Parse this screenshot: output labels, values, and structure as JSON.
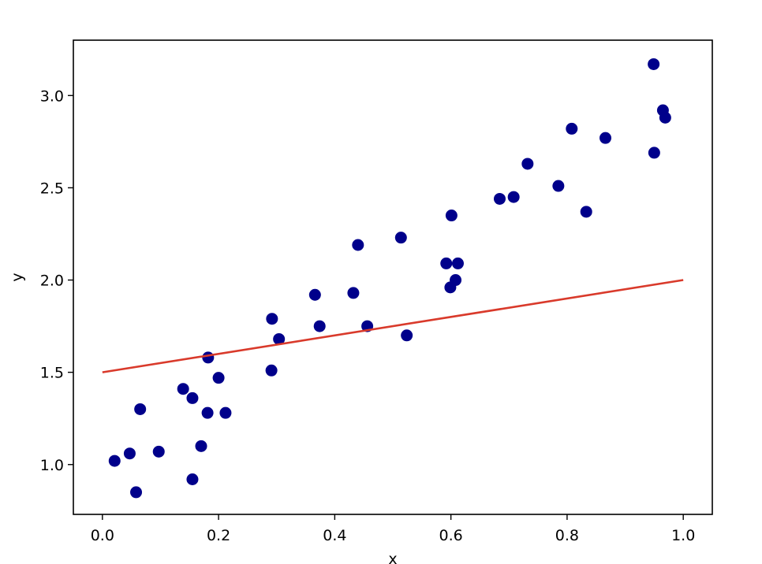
{
  "chart_data": {
    "type": "scatter",
    "xlabel": "x",
    "ylabel": "y",
    "xlim": [
      -0.05,
      1.05
    ],
    "ylim": [
      0.73,
      3.3
    ],
    "grid": false,
    "x_ticks": [
      {
        "value": 0.0,
        "label": "0.0"
      },
      {
        "value": 0.2,
        "label": "0.2"
      },
      {
        "value": 0.4,
        "label": "0.4"
      },
      {
        "value": 0.6,
        "label": "0.6"
      },
      {
        "value": 0.8,
        "label": "0.8"
      },
      {
        "value": 1.0,
        "label": "1.0"
      }
    ],
    "y_ticks": [
      {
        "value": 1.0,
        "label": "1.0"
      },
      {
        "value": 1.5,
        "label": "1.5"
      },
      {
        "value": 2.0,
        "label": "2.0"
      },
      {
        "value": 2.5,
        "label": "2.5"
      },
      {
        "value": 3.0,
        "label": "3.0"
      }
    ],
    "series": [
      {
        "kind": "points",
        "color": "#00008b",
        "points": [
          {
            "x": 0.021,
            "y": 1.02
          },
          {
            "x": 0.047,
            "y": 1.06
          },
          {
            "x": 0.058,
            "y": 0.85
          },
          {
            "x": 0.065,
            "y": 1.3
          },
          {
            "x": 0.097,
            "y": 1.07
          },
          {
            "x": 0.139,
            "y": 1.41
          },
          {
            "x": 0.155,
            "y": 1.36
          },
          {
            "x": 0.155,
            "y": 0.92
          },
          {
            "x": 0.17,
            "y": 1.1
          },
          {
            "x": 0.181,
            "y": 1.28
          },
          {
            "x": 0.182,
            "y": 1.58
          },
          {
            "x": 0.2,
            "y": 1.47
          },
          {
            "x": 0.212,
            "y": 1.28
          },
          {
            "x": 0.291,
            "y": 1.51
          },
          {
            "x": 0.292,
            "y": 1.79
          },
          {
            "x": 0.304,
            "y": 1.68
          },
          {
            "x": 0.366,
            "y": 1.92
          },
          {
            "x": 0.374,
            "y": 1.75
          },
          {
            "x": 0.432,
            "y": 1.93
          },
          {
            "x": 0.44,
            "y": 2.19
          },
          {
            "x": 0.456,
            "y": 1.75
          },
          {
            "x": 0.514,
            "y": 2.23
          },
          {
            "x": 0.524,
            "y": 1.7
          },
          {
            "x": 0.592,
            "y": 2.09
          },
          {
            "x": 0.599,
            "y": 1.96
          },
          {
            "x": 0.601,
            "y": 2.35
          },
          {
            "x": 0.608,
            "y": 2.0
          },
          {
            "x": 0.612,
            "y": 2.09
          },
          {
            "x": 0.684,
            "y": 2.44
          },
          {
            "x": 0.708,
            "y": 2.45
          },
          {
            "x": 0.732,
            "y": 2.63
          },
          {
            "x": 0.785,
            "y": 2.51
          },
          {
            "x": 0.808,
            "y": 2.82
          },
          {
            "x": 0.833,
            "y": 2.37
          },
          {
            "x": 0.866,
            "y": 2.77
          },
          {
            "x": 0.949,
            "y": 3.17
          },
          {
            "x": 0.95,
            "y": 2.69
          },
          {
            "x": 0.965,
            "y": 2.92
          },
          {
            "x": 0.969,
            "y": 2.88
          }
        ]
      },
      {
        "kind": "line",
        "color": "#d93a2b",
        "points": [
          {
            "x": 0.0,
            "y": 1.5
          },
          {
            "x": 1.0,
            "y": 2.0
          }
        ]
      }
    ]
  }
}
